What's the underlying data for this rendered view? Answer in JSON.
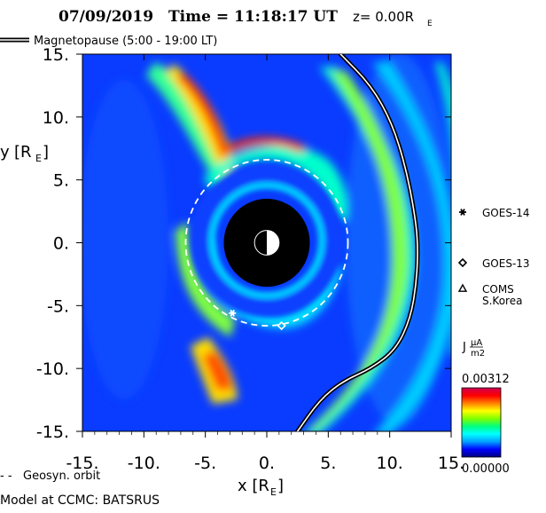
{
  "header": {
    "date": "07/09/2019",
    "time_label": "Time = 11:18:17 UT",
    "z_label": "z= 0.00R",
    "z_sub": "E"
  },
  "legend": {
    "magnetopause_label": "Magnetopause (5:00 - 19:00 LT)",
    "geosyn_label": "Geosyn. orbit"
  },
  "footer": {
    "model_label": "Model at CCMC: BATSRUS"
  },
  "satellites": [
    {
      "name": "GOES-14",
      "marker": "asterisk",
      "x": -2.8,
      "y": -5.6
    },
    {
      "name": "GOES-13",
      "marker": "diamond",
      "x": 1.2,
      "y": -6.6
    },
    {
      "name": "COMS\nS.Korea",
      "marker": "triangle"
    }
  ],
  "colorbar": {
    "label": "J",
    "unit_num": "μA",
    "unit_den": "m2",
    "max_label": "0.00312",
    "min_label": "0.00000",
    "colors": [
      "#000080",
      "#0000ff",
      "#00a0ff",
      "#00ffff",
      "#00ff80",
      "#80ff00",
      "#ffff00",
      "#ff8000",
      "#ff0000",
      "#d00050"
    ]
  },
  "chart_data": {
    "type": "heatmap",
    "title": "07/09/2019 Time = 11:18:17 UT z= 0.00RE",
    "xlabel": "x [RE]",
    "ylabel": "y [RE]",
    "xlim": [
      -15,
      15
    ],
    "ylim": [
      -15,
      15
    ],
    "x_ticks": [
      "-15.",
      "-10.",
      "-5.",
      "0.",
      "5.",
      "10.",
      "15."
    ],
    "y_ticks": [
      "15.",
      "10.",
      "5.",
      "0.",
      "-5.",
      "-10.",
      "-15."
    ],
    "quantity": "J",
    "value_range": [
      0.0,
      0.00312
    ],
    "earth_radius": 3.5,
    "geosynchronous_radius": 6.6,
    "magnetopause": [
      [
        6.0,
        15.0
      ],
      [
        8.5,
        12.5
      ],
      [
        10.2,
        9.5
      ],
      [
        11.3,
        6.0
      ],
      [
        12.0,
        2.5
      ],
      [
        12.3,
        0.0
      ],
      [
        12.2,
        -3.0
      ],
      [
        11.7,
        -6.0
      ],
      [
        10.5,
        -8.5
      ],
      [
        8.5,
        -10.0
      ],
      [
        6.2,
        -11.0
      ],
      [
        4.3,
        -12.5
      ],
      [
        2.5,
        -15.0
      ]
    ]
  }
}
